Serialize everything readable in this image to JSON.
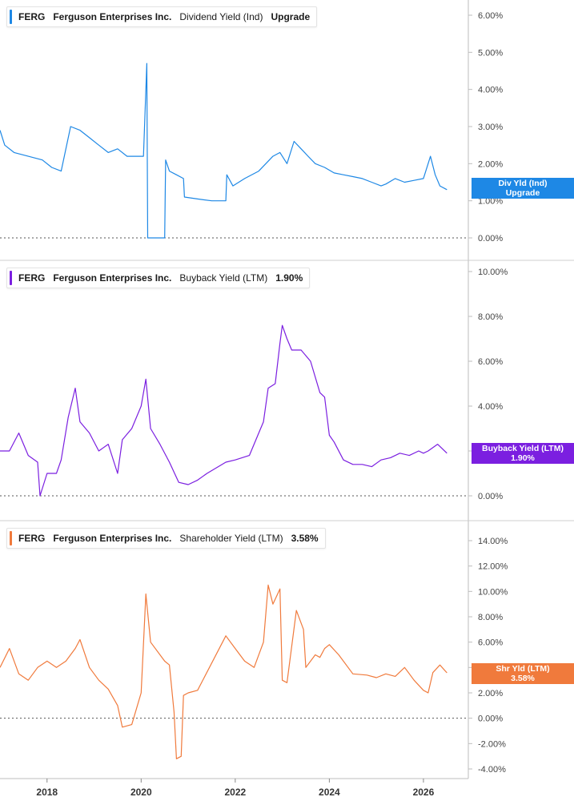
{
  "ticker": "FERG",
  "company": "Ferguson Enterprises Inc.",
  "chart_data": [
    {
      "type": "line",
      "metric": "Dividend Yield (Ind)",
      "value_label": "Upgrade",
      "tag_title": "Div Yld (Ind)",
      "tag_value": "Upgrade",
      "color": "#1e88e5",
      "ylim": [
        0,
        6.5
      ],
      "yticks": [
        "6.00%",
        "5.00%",
        "4.00%",
        "3.00%",
        "2.00%",
        "1.00%",
        "0.00%"
      ],
      "ytick_values": [
        6,
        5,
        4,
        3,
        2,
        1,
        0
      ],
      "series": [
        {
          "x": [
            2017.0,
            2017.1,
            2017.3,
            2017.6,
            2017.9,
            2018.1,
            2018.3,
            2018.5,
            2018.7,
            2018.9,
            2019.1,
            2019.3,
            2019.5,
            2019.7,
            2019.9,
            2020.05,
            2020.12,
            2020.13,
            2020.14,
            2020.3,
            2020.5,
            2020.5,
            2020.52,
            2020.6,
            2020.75,
            2020.9,
            2020.92,
            2021.2,
            2021.5,
            2021.8,
            2021.82,
            2021.95,
            2022.2,
            2022.5,
            2022.8,
            2022.95,
            2023.1,
            2023.25,
            2023.4,
            2023.55,
            2023.7,
            2023.9,
            2024.1,
            2024.3,
            2024.5,
            2024.7,
            2024.9,
            2025.1,
            2025.2,
            2025.4,
            2025.6,
            2025.8,
            2026.0,
            2026.15,
            2026.25,
            2026.35,
            2026.5
          ],
          "values": [
            2.9,
            2.5,
            2.3,
            2.2,
            2.1,
            1.9,
            1.8,
            3.0,
            2.9,
            2.7,
            2.5,
            2.3,
            2.4,
            2.2,
            2.2,
            2.2,
            4.7,
            2.5,
            0.0,
            0.0,
            0.0,
            0.0,
            2.1,
            1.8,
            1.7,
            1.6,
            1.1,
            1.05,
            1.0,
            1.0,
            1.7,
            1.4,
            1.6,
            1.8,
            2.2,
            2.3,
            2.0,
            2.6,
            2.4,
            2.2,
            2.0,
            1.9,
            1.75,
            1.7,
            1.65,
            1.6,
            1.5,
            1.4,
            1.45,
            1.6,
            1.5,
            1.55,
            1.6,
            2.2,
            1.7,
            1.4,
            1.3
          ]
        }
      ]
    },
    {
      "type": "line",
      "metric": "Buyback Yield (LTM)",
      "value_label": "1.90%",
      "tag_title": "Buyback Yield (LTM)",
      "tag_value": "1.90%",
      "color": "#7b1fe0",
      "ylim": [
        -0.2,
        10.5
      ],
      "yticks": [
        "10.00%",
        "8.00%",
        "6.00%",
        "4.00%",
        "2.00%",
        "0.00%"
      ],
      "ytick_values": [
        10,
        8,
        6,
        4,
        2,
        0
      ],
      "series": [
        {
          "x": [
            2017.0,
            2017.2,
            2017.4,
            2017.6,
            2017.8,
            2017.85,
            2018.0,
            2018.2,
            2018.3,
            2018.45,
            2018.6,
            2018.7,
            2018.9,
            2019.1,
            2019.3,
            2019.5,
            2019.6,
            2019.8,
            2020.0,
            2020.1,
            2020.2,
            2020.4,
            2020.6,
            2020.8,
            2021.0,
            2021.2,
            2021.4,
            2021.8,
            2022.0,
            2022.3,
            2022.5,
            2022.6,
            2022.7,
            2022.85,
            2022.95,
            2023.0,
            2023.1,
            2023.2,
            2023.4,
            2023.6,
            2023.8,
            2023.9,
            2024.0,
            2024.1,
            2024.3,
            2024.5,
            2024.7,
            2024.9,
            2025.1,
            2025.3,
            2025.5,
            2025.7,
            2025.9,
            2026.0,
            2026.1,
            2026.3,
            2026.5
          ],
          "values": [
            2.0,
            2.0,
            2.8,
            1.8,
            1.5,
            0.0,
            1.0,
            1.0,
            1.6,
            3.5,
            4.8,
            3.3,
            2.8,
            2.0,
            2.3,
            1.0,
            2.5,
            3.0,
            4.0,
            5.2,
            3.0,
            2.3,
            1.5,
            0.6,
            0.5,
            0.7,
            1.0,
            1.5,
            1.6,
            1.8,
            2.8,
            3.3,
            4.8,
            5.0,
            6.8,
            7.6,
            7.0,
            6.5,
            6.5,
            6.0,
            4.6,
            4.4,
            2.7,
            2.4,
            1.6,
            1.4,
            1.4,
            1.3,
            1.6,
            1.7,
            1.9,
            1.8,
            2.0,
            1.9,
            2.0,
            2.3,
            1.9
          ]
        }
      ]
    },
    {
      "type": "line",
      "metric": "Shareholder Yield (LTM)",
      "value_label": "3.58%",
      "tag_title": "Shr Yld (LTM)",
      "tag_value": "3.58%",
      "color": "#f07a3c",
      "ylim": [
        -4.6,
        15
      ],
      "yticks": [
        "14.00%",
        "12.00%",
        "10.00%",
        "8.00%",
        "6.00%",
        "4.00%",
        "2.00%",
        "0.00%",
        "-2.00%",
        "-4.00%"
      ],
      "ytick_values": [
        14,
        12,
        10,
        8,
        6,
        4,
        2,
        0,
        -2,
        -4
      ],
      "series": [
        {
          "x": [
            2017.0,
            2017.2,
            2017.4,
            2017.6,
            2017.8,
            2018.0,
            2018.2,
            2018.4,
            2018.6,
            2018.7,
            2018.9,
            2019.1,
            2019.3,
            2019.5,
            2019.6,
            2019.8,
            2020.0,
            2020.1,
            2020.2,
            2020.5,
            2020.6,
            2020.7,
            2020.75,
            2020.85,
            2020.9,
            2021.0,
            2021.2,
            2021.8,
            2022.0,
            2022.2,
            2022.4,
            2022.6,
            2022.7,
            2022.8,
            2022.95,
            2023.0,
            2023.1,
            2023.3,
            2023.45,
            2023.5,
            2023.7,
            2023.8,
            2023.9,
            2024.0,
            2024.2,
            2024.5,
            2024.8,
            2025.0,
            2025.2,
            2025.4,
            2025.6,
            2025.8,
            2026.0,
            2026.1,
            2026.2,
            2026.35,
            2026.5
          ],
          "values": [
            4.0,
            5.5,
            3.5,
            3.0,
            4.0,
            4.5,
            4.0,
            4.5,
            5.5,
            6.2,
            4.0,
            3.0,
            2.3,
            1.0,
            -0.7,
            -0.5,
            2.0,
            9.8,
            6.0,
            4.5,
            4.2,
            0.5,
            -3.2,
            -3.0,
            1.8,
            2.0,
            2.2,
            6.5,
            5.5,
            4.5,
            4.0,
            6.0,
            10.5,
            9.0,
            10.2,
            3.0,
            2.8,
            8.5,
            7.0,
            4.0,
            5.0,
            4.8,
            5.5,
            5.8,
            5.0,
            3.5,
            3.4,
            3.2,
            3.5,
            3.3,
            4.0,
            3.0,
            2.2,
            2.0,
            3.6,
            4.2,
            3.58
          ]
        }
      ]
    }
  ],
  "x_axis": {
    "ticks": [
      "2018",
      "2020",
      "2022",
      "2024",
      "2026"
    ],
    "tick_values": [
      2018,
      2020,
      2022,
      2024,
      2026
    ],
    "range": [
      2017.0,
      2026.75
    ]
  }
}
